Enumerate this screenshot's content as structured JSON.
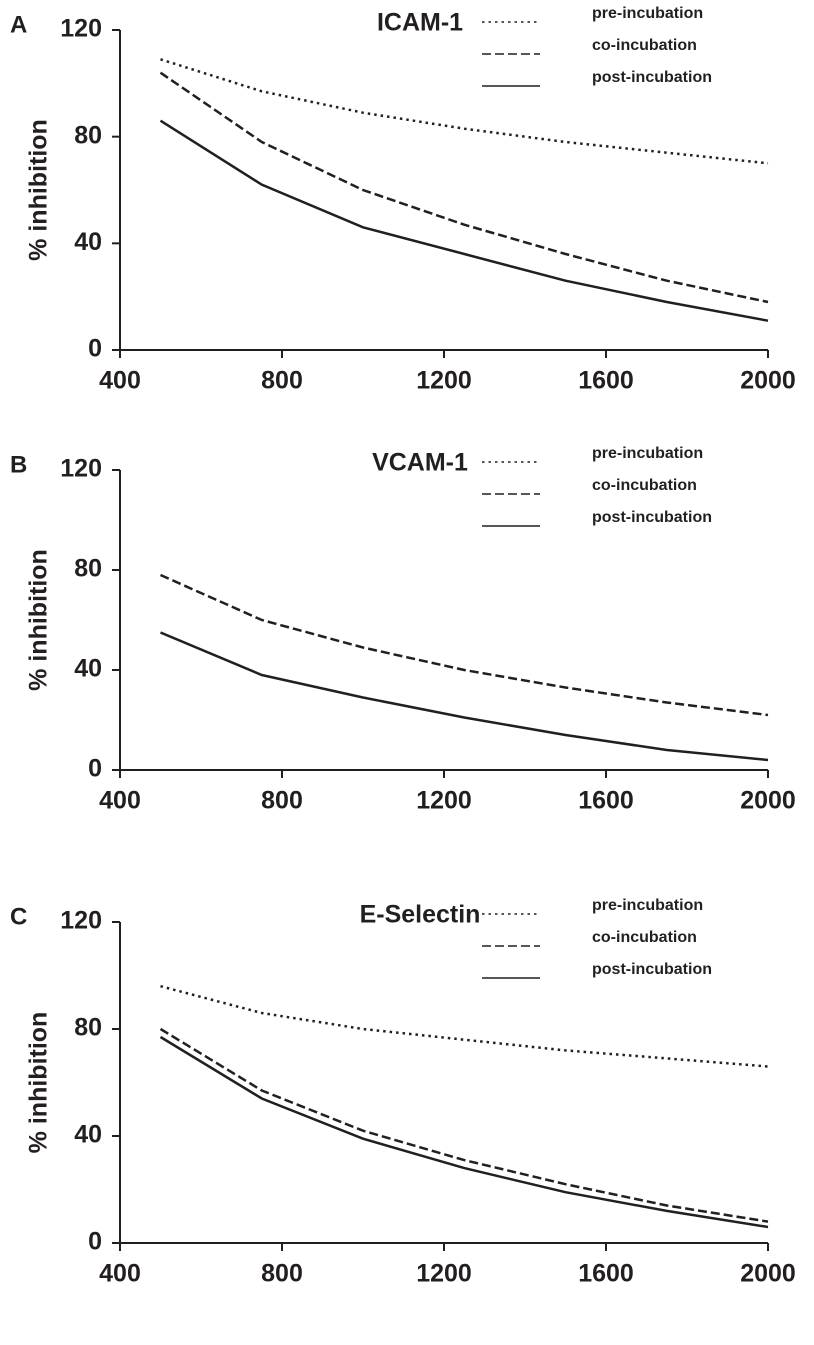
{
  "chart_data": [
    {
      "type": "line",
      "label": "A",
      "title": "ICAM-1",
      "ylabel": "% inhibition",
      "x": [
        500,
        750,
        1000,
        1250,
        1500,
        1750,
        2000
      ],
      "series": [
        {
          "name": "pre-incubation",
          "color": "#231f20",
          "style": "dotted",
          "values": [
            109,
            97,
            89,
            83,
            78,
            74,
            70
          ]
        },
        {
          "name": "co-incubation",
          "color": "#231f20",
          "style": "dashed",
          "values": [
            104,
            78,
            60,
            47,
            36,
            26,
            18
          ]
        },
        {
          "name": "post-incubation",
          "color": "#231f20",
          "style": "solid",
          "values": [
            86,
            62,
            46,
            36,
            26,
            18,
            11
          ]
        }
      ],
      "xlim": [
        400,
        2000
      ],
      "xticks": [
        400,
        800,
        1200,
        1600,
        2000
      ],
      "ylim": [
        0,
        120
      ],
      "yticks": [
        0,
        40,
        80,
        120
      ]
    },
    {
      "type": "line",
      "label": "B",
      "title": "VCAM-1",
      "ylabel": "% inhibition",
      "x": [
        500,
        750,
        1000,
        1250,
        1500,
        1750,
        2000
      ],
      "series": [
        {
          "name": "pre-incubation",
          "color": "#231f20",
          "style": "dotted",
          "values": [
            null,
            null,
            null,
            null,
            null,
            null,
            null
          ]
        },
        {
          "name": "co-incubation",
          "color": "#231f20",
          "style": "dashed",
          "values": [
            78,
            60,
            49,
            40,
            33,
            27,
            22
          ]
        },
        {
          "name": "post-incubation",
          "color": "#231f20",
          "style": "solid",
          "values": [
            55,
            38,
            29,
            21,
            14,
            8,
            4
          ]
        }
      ],
      "xlim": [
        400,
        2000
      ],
      "xticks": [
        400,
        800,
        1200,
        1600,
        2000
      ],
      "ylim": [
        0,
        120
      ],
      "yticks": [
        0,
        40,
        80,
        120
      ]
    },
    {
      "type": "line",
      "label": "C",
      "title": "E-Selectin",
      "ylabel": "% inhibition",
      "x": [
        500,
        750,
        1000,
        1250,
        1500,
        1750,
        2000
      ],
      "series": [
        {
          "name": "pre-incubation",
          "color": "#231f20",
          "style": "dotted",
          "values": [
            96,
            86,
            80,
            76,
            72,
            69,
            66
          ]
        },
        {
          "name": "co-incubation",
          "color": "#231f20",
          "style": "dashed",
          "values": [
            80,
            57,
            42,
            31,
            22,
            14,
            8
          ]
        },
        {
          "name": "post-incubation",
          "color": "#231f20",
          "style": "solid",
          "values": [
            77,
            54,
            39,
            28,
            19,
            12,
            6
          ]
        }
      ],
      "xlim": [
        400,
        2000
      ],
      "xticks": [
        400,
        800,
        1200,
        1600,
        2000
      ],
      "ylim": [
        0,
        120
      ],
      "yticks": [
        0,
        40,
        80,
        120
      ]
    }
  ]
}
